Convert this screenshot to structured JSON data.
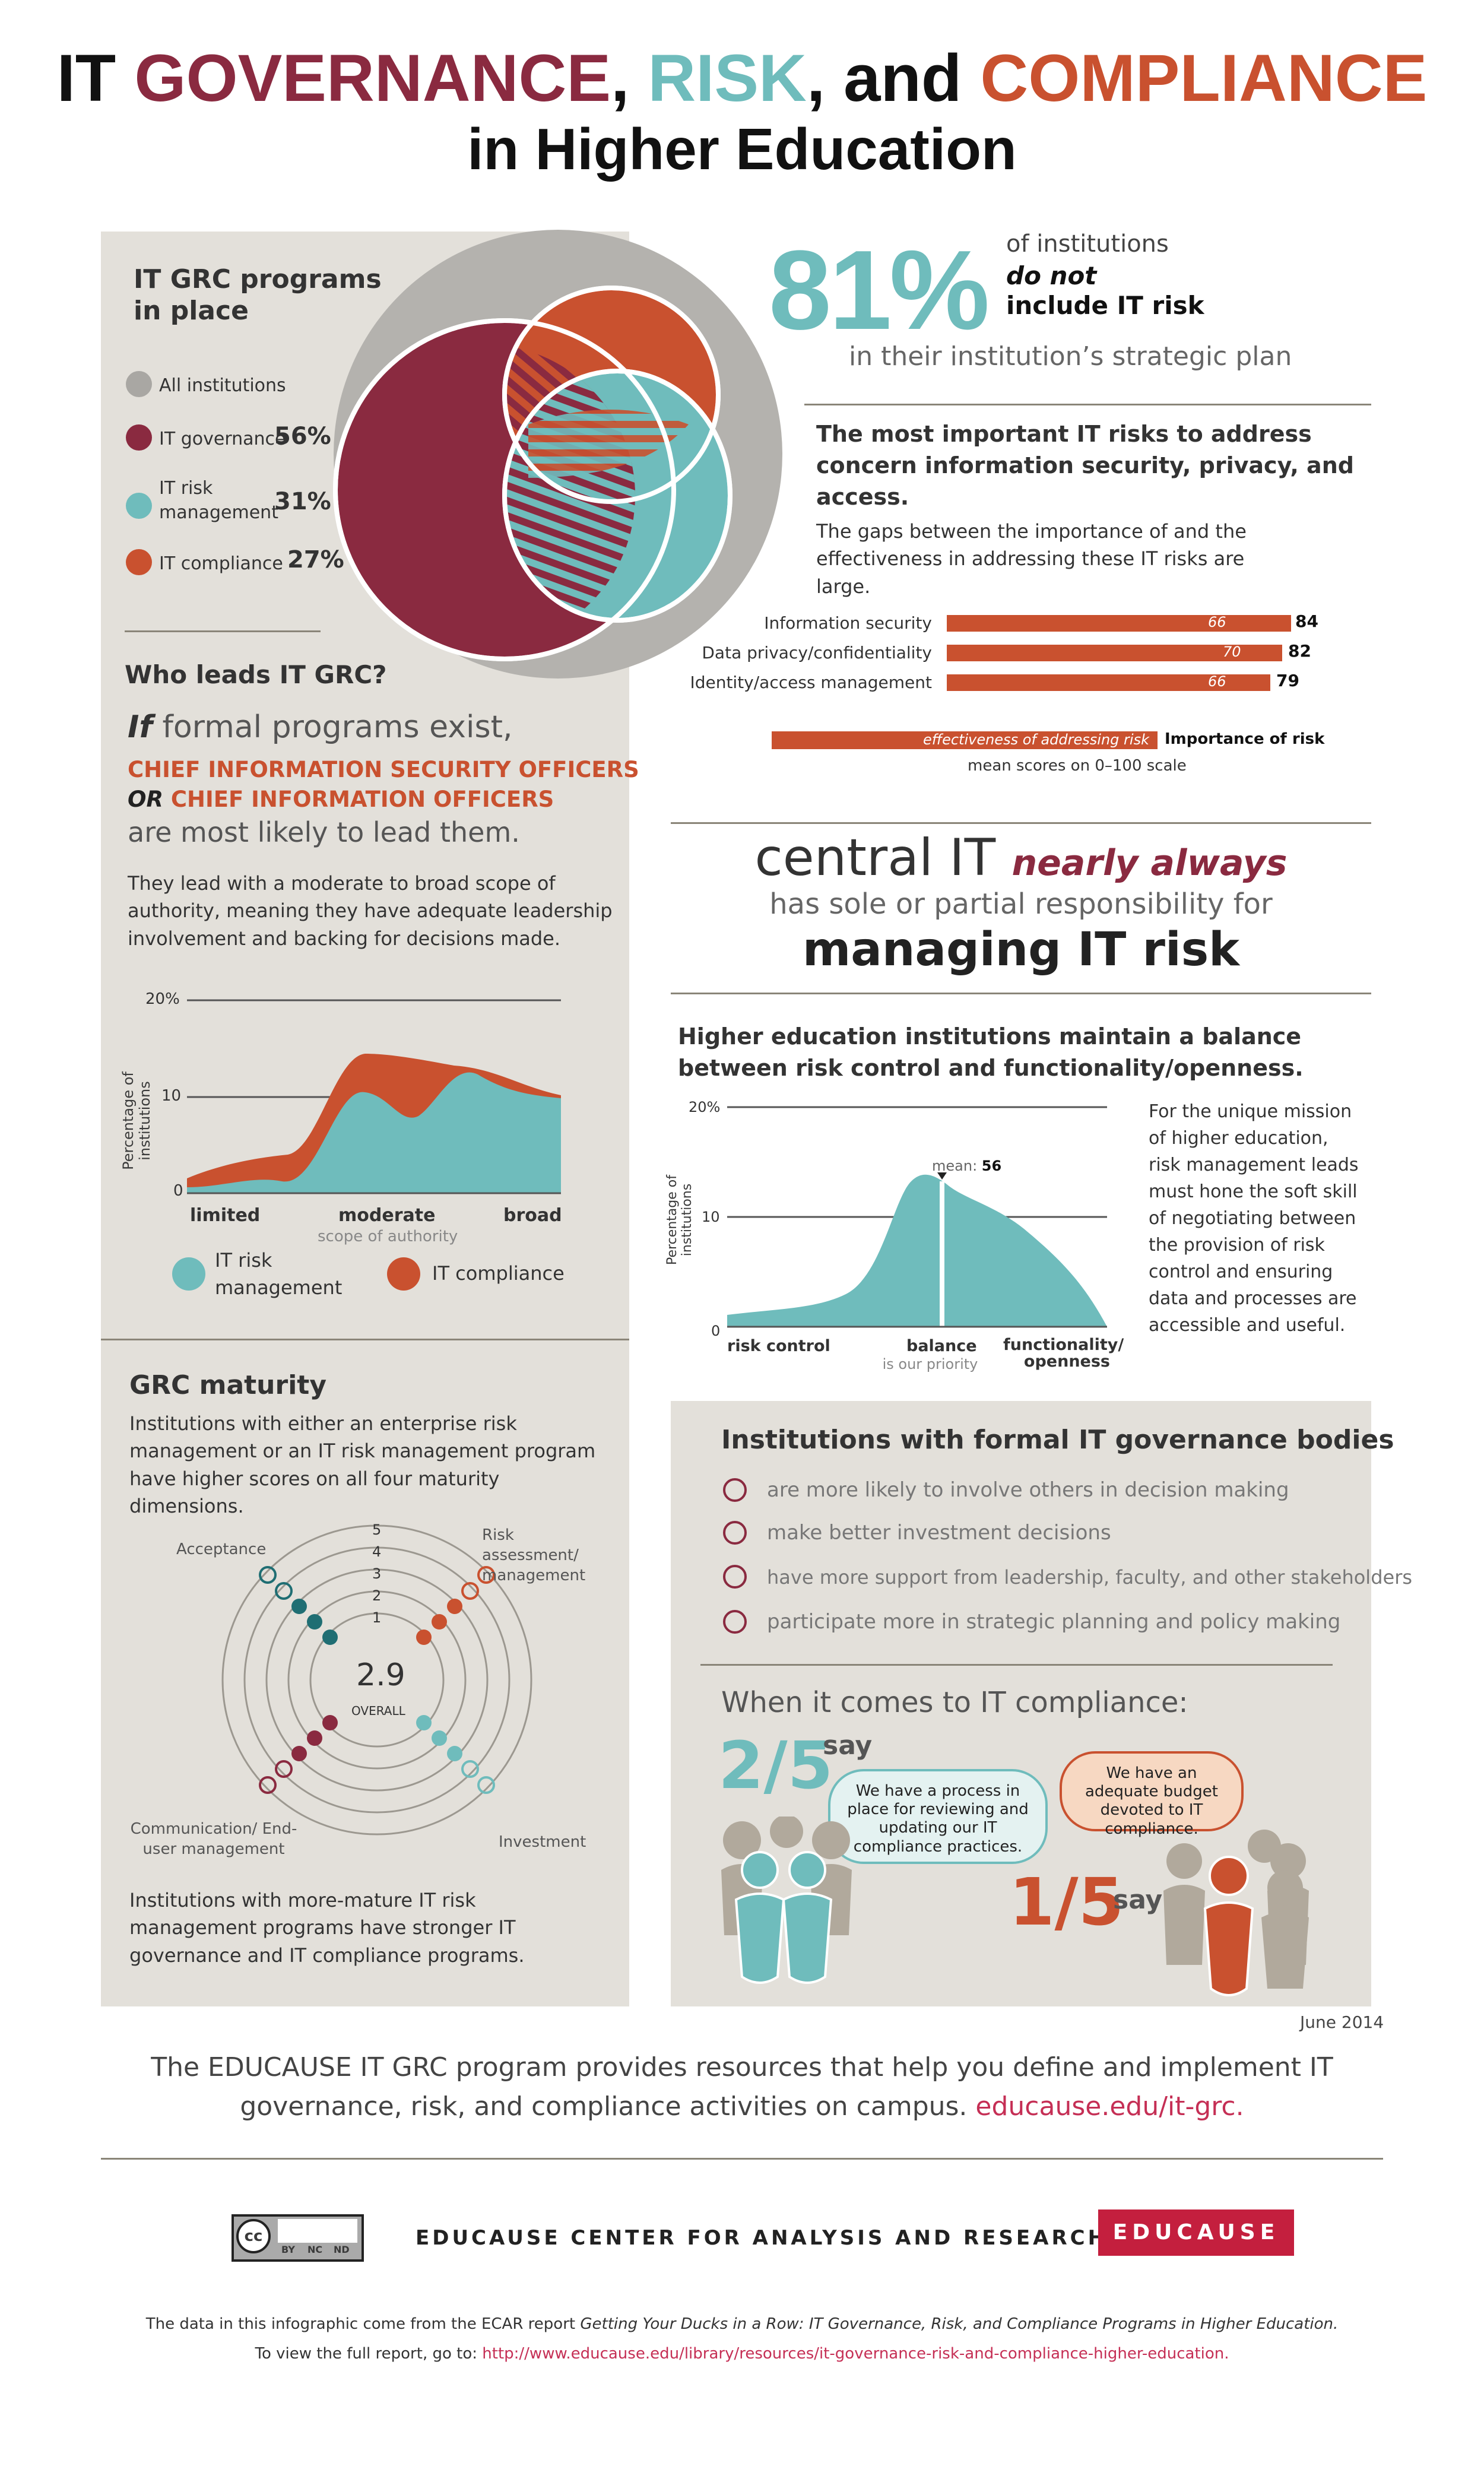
{
  "title": {
    "p1": "IT ",
    "p2": "GOVERNANCE",
    ",": ",",
    "p3": " RISK",
    "c2": ",",
    "p4": " and ",
    "p5": "COMPLIANCE",
    "line2": "in Higher Education"
  },
  "programs": {
    "heading": "IT GRC programs in place",
    "legend": [
      {
        "label": "All institutions",
        "pct": "",
        "color": "#a9a7a3"
      },
      {
        "label": "IT governance",
        "pct": "56%",
        "color": "#8a2a40"
      },
      {
        "label": "IT risk management",
        "pct": "31%",
        "color": "#6fbcbc"
      },
      {
        "label": "IT compliance",
        "pct": "27%",
        "color": "#c9512f"
      }
    ]
  },
  "stat81": {
    "big": "81%",
    "l1": "of institutions",
    "l2": "do not",
    "l3": "include IT risk",
    "l4": "in their institution’s strategic plan"
  },
  "risks": {
    "heading": "The most important IT risks to address concern information security, privacy, and access.",
    "sub": "The gaps between the importance of and the effectiveness in addressing these IT risks are large.",
    "rows": [
      {
        "label": "Information security",
        "effectiveness": 66,
        "importance": 84
      },
      {
        "label": "Data privacy/confidentiality",
        "effectiveness": 70,
        "importance": 82
      },
      {
        "label": "Identity/access management",
        "effectiveness": 66,
        "importance": 79
      }
    ],
    "legend_eff": "effectiveness of addressing risk",
    "legend_imp": "Importance of risk",
    "scale": "mean scores on 0–100 scale"
  },
  "leads": {
    "heading": "Who leads IT GRC?",
    "if": "If",
    "formal": " formal programs exist,",
    "ciso": "CHIEF INFORMATION SECURITY OFFICERS",
    "or": "OR",
    "cio": " CHIEF INFORMATION OFFICERS",
    "likely": "are most likely to lead them.",
    "desc": "They lead with a moderate to broad scope of authority, meaning they have adequate leadership involvement and backing for decisions made."
  },
  "scope_chart": {
    "ylabel": "Percentage of institutions",
    "yticks": [
      "20%",
      "10",
      "0"
    ],
    "xticks": [
      "limited",
      "moderate",
      "broad"
    ],
    "xsub": "scope of authority",
    "legend": [
      {
        "label": "IT risk management",
        "color": "#6fbcbc"
      },
      {
        "label": "IT compliance",
        "color": "#c9512f"
      }
    ]
  },
  "central": {
    "a": "central IT",
    "b": "nearly always",
    "c": "has sole or partial responsibility for",
    "d": "managing IT risk"
  },
  "balance": {
    "heading": "Higher education institutions maintain a balance between risk control and functionality/openness.",
    "ylabel": "Percentage of institutions",
    "yticks": [
      "20%",
      "10",
      "0"
    ],
    "mean_label": "mean:",
    "mean_value": "56",
    "x_left": "risk control",
    "x_mid": "balance",
    "x_mid_sub": "is our priority",
    "x_right": "functionality/ openness",
    "note": "For the unique mission of higher education, risk management leads must hone the soft skill of negotiating between the provision of risk control and ensuring data and processes are accessible and useful."
  },
  "maturity": {
    "heading": "GRC maturity",
    "desc": "Institutions with either an enterprise risk management or an IT risk management program have higher scores on all four maturity dimensions.",
    "ticks": [
      "5",
      "4",
      "3",
      "2",
      "1"
    ],
    "center_value": "2.9",
    "center_label": "OVERALL",
    "dims": [
      "Acceptance",
      "Risk assessment/ management",
      "Communication/ End-user management",
      "Investment"
    ],
    "footer": "Institutions with more-mature IT risk management programs have stronger IT governance and IT compliance programs."
  },
  "bodies": {
    "heading": "Institutions with formal IT governance bodies",
    "items": [
      "are more likely to involve others in decision making",
      "make better investment decisions",
      "have more support from leadership, faculty, and other stakeholders",
      "participate more in strategic planning and policy making"
    ]
  },
  "compliance": {
    "heading": "When it comes to IT compliance:",
    "frac1": "2/5",
    "say1": "say",
    "bubble1": "We have a process in place for reviewing and updating our IT compliance practices.",
    "frac2": "1/5",
    "say2": "say",
    "bubble2": "We have an adequate budget devoted to IT compliance."
  },
  "date": "June 2014",
  "footer": {
    "text": "The EDUCAUSE IT GRC program provides resources that help you define and implement IT governance, risk, and compliance activities on campus. ",
    "link": "educause.edu/it-grc.",
    "center": "EDUCAUSE CENTER FOR ANALYSIS AND RESEARCH",
    "brand": "EDUCAUSE",
    "cc": "cc",
    "cc_labels": [
      "BY",
      "NC",
      "ND"
    ],
    "src1": "The data in this infographic come from the ECAR report ",
    "src_title": "Getting Your Ducks in a Row: IT Governance, Risk, and Compliance Programs in Higher Education.",
    "src2": "To view the full report, go to: ",
    "src_url": "http://www.educause.edu/library/resources/it-governance-risk-and-compliance-higher-education."
  }
}
